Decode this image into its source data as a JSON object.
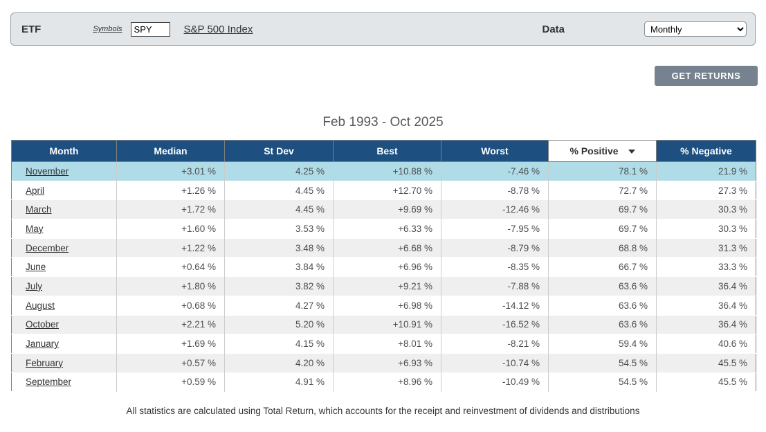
{
  "form": {
    "etf_label": "ETF",
    "symbols_label": "Symbols",
    "symbol_value": "SPY",
    "index_link": "S&P 500 Index",
    "data_label": "Data",
    "data_value": "Monthly"
  },
  "actions": {
    "get_returns_label": "GET RETURNS"
  },
  "table": {
    "title": "Feb 1993 - Oct 2025",
    "columns": [
      "Month",
      "Median",
      "St Dev",
      "Best",
      "Worst",
      "% Positive",
      "% Negative"
    ],
    "sorted_column": "% Positive",
    "rows": [
      {
        "month": "November",
        "median": "+3.01 %",
        "stdev": "4.25 %",
        "best": "+10.88 %",
        "worst": "-7.46 %",
        "positive": "78.1 %",
        "negative": "21.9 %",
        "highlighted": true
      },
      {
        "month": "April",
        "median": "+1.26 %",
        "stdev": "4.45 %",
        "best": "+12.70 %",
        "worst": "-8.78 %",
        "positive": "72.7 %",
        "negative": "27.3 %"
      },
      {
        "month": "March",
        "median": "+1.72 %",
        "stdev": "4.45 %",
        "best": "+9.69 %",
        "worst": "-12.46 %",
        "positive": "69.7 %",
        "negative": "30.3 %"
      },
      {
        "month": "May",
        "median": "+1.60 %",
        "stdev": "3.53 %",
        "best": "+6.33 %",
        "worst": "-7.95 %",
        "positive": "69.7 %",
        "negative": "30.3 %"
      },
      {
        "month": "December",
        "median": "+1.22 %",
        "stdev": "3.48 %",
        "best": "+6.68 %",
        "worst": "-8.79 %",
        "positive": "68.8 %",
        "negative": "31.3 %"
      },
      {
        "month": "June",
        "median": "+0.64 %",
        "stdev": "3.84 %",
        "best": "+6.96 %",
        "worst": "-8.35 %",
        "positive": "66.7 %",
        "negative": "33.3 %"
      },
      {
        "month": "July",
        "median": "+1.80 %",
        "stdev": "3.82 %",
        "best": "+9.21 %",
        "worst": "-7.88 %",
        "positive": "63.6 %",
        "negative": "36.4 %"
      },
      {
        "month": "August",
        "median": "+0.68 %",
        "stdev": "4.27 %",
        "best": "+6.98 %",
        "worst": "-14.12 %",
        "positive": "63.6 %",
        "negative": "36.4 %"
      },
      {
        "month": "October",
        "median": "+2.21 %",
        "stdev": "5.20 %",
        "best": "+10.91 %",
        "worst": "-16.52 %",
        "positive": "63.6 %",
        "negative": "36.4 %"
      },
      {
        "month": "January",
        "median": "+1.69 %",
        "stdev": "4.15 %",
        "best": "+8.01 %",
        "worst": "-8.21 %",
        "positive": "59.4 %",
        "negative": "40.6 %"
      },
      {
        "month": "February",
        "median": "+0.57 %",
        "stdev": "4.20 %",
        "best": "+6.93 %",
        "worst": "-10.74 %",
        "positive": "54.5 %",
        "negative": "45.5 %"
      },
      {
        "month": "September",
        "median": "+0.59 %",
        "stdev": "4.91 %",
        "best": "+8.96 %",
        "worst": "-10.49 %",
        "positive": "54.5 %",
        "negative": "45.5 %"
      }
    ]
  },
  "footer": {
    "note": "All statistics are calculated using Total Return, which accounts for the receipt and reinvestment of dividends and distributions"
  },
  "colors": {
    "header_bg": "#1d5080",
    "highlight_row_bg": "#b0dce8",
    "stripe_row_bg": "#efefef",
    "positive_value": "#008000",
    "negative_value": "#e60000",
    "button_bg": "#76828f",
    "bar_bg": "#e2e6e9"
  }
}
